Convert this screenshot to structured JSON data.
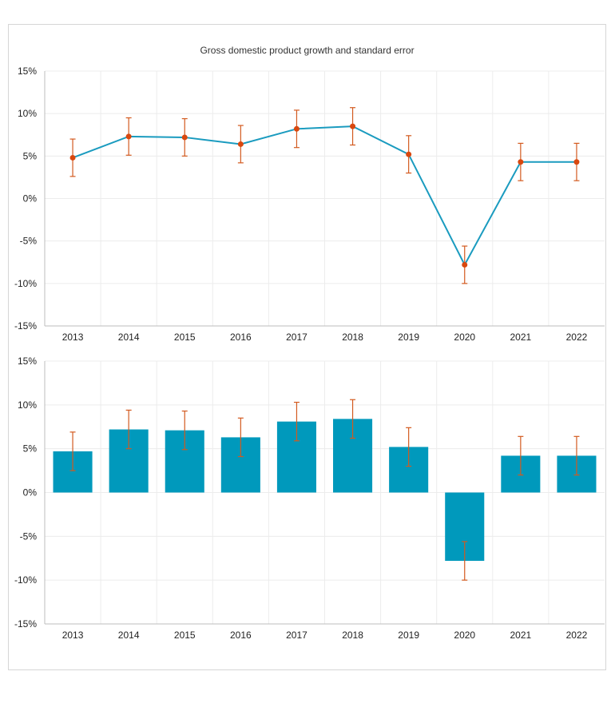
{
  "title": "Gross domestic product growth and standard error",
  "colors": {
    "line": "#1a9bbf",
    "marker": "#d9480f",
    "bar": "#0099bc",
    "error": "#d35a1f",
    "grid": "#ececec",
    "axis": "#bdbdbd"
  },
  "chart_data": [
    {
      "type": "line",
      "title": "Gross domestic product growth and standard error",
      "categories": [
        "2013",
        "2014",
        "2015",
        "2016",
        "2017",
        "2018",
        "2019",
        "2020",
        "2021",
        "2022"
      ],
      "values": [
        4.8,
        7.3,
        7.2,
        6.4,
        8.2,
        8.5,
        5.2,
        -7.8,
        4.3,
        4.3
      ],
      "error": [
        2.2,
        2.2,
        2.2,
        2.2,
        2.2,
        2.2,
        2.2,
        2.2,
        2.2,
        2.2
      ],
      "ylim": [
        -15,
        15
      ],
      "yticks": [
        "15%",
        "10%",
        "5%",
        "0%",
        "-5%",
        "-10%",
        "-15%"
      ],
      "yticks_values": [
        15,
        10,
        5,
        0,
        -5,
        -10,
        -15
      ],
      "grid": true
    },
    {
      "type": "bar",
      "categories": [
        "2013",
        "2014",
        "2015",
        "2016",
        "2017",
        "2018",
        "2019",
        "2020",
        "2021",
        "2022"
      ],
      "values": [
        4.7,
        7.2,
        7.1,
        6.3,
        8.1,
        8.4,
        5.2,
        -7.8,
        4.2,
        4.2
      ],
      "error": [
        2.2,
        2.2,
        2.2,
        2.2,
        2.2,
        2.2,
        2.2,
        2.2,
        2.2,
        2.2
      ],
      "ylim": [
        -15,
        15
      ],
      "yticks": [
        "15%",
        "10%",
        "5%",
        "0%",
        "-5%",
        "-10%",
        "-15%"
      ],
      "yticks_values": [
        15,
        10,
        5,
        0,
        -5,
        -10,
        -15
      ],
      "grid": true
    }
  ]
}
